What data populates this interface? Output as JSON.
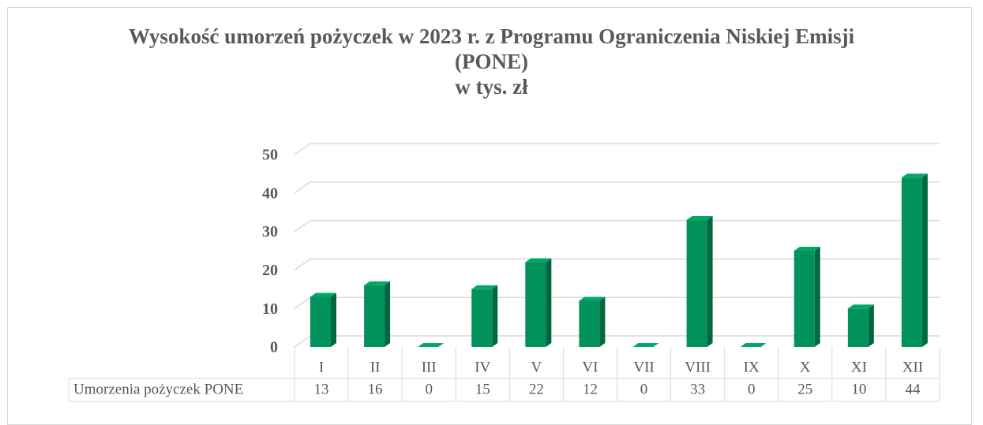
{
  "chart_data": {
    "type": "bar",
    "title": "Wysokość umorzeń pożyczek w 2023 r. z Programu Ograniczenia Niskiej Emisji (PONE)",
    "subtitle": "w tys. zł",
    "categories": [
      "I",
      "II",
      "III",
      "IV",
      "V",
      "VI",
      "VII",
      "VIII",
      "IX",
      "X",
      "XI",
      "XII"
    ],
    "series": [
      {
        "name": "Umorzenia pożyczek PONE",
        "color": "#00925a",
        "values": [
          13,
          16,
          0,
          15,
          22,
          12,
          0,
          33,
          0,
          25,
          10,
          44
        ]
      }
    ],
    "ylim": [
      0,
      50
    ],
    "yticks": [
      0,
      10,
      20,
      30,
      40,
      50
    ],
    "grid": true,
    "data_table": true
  }
}
